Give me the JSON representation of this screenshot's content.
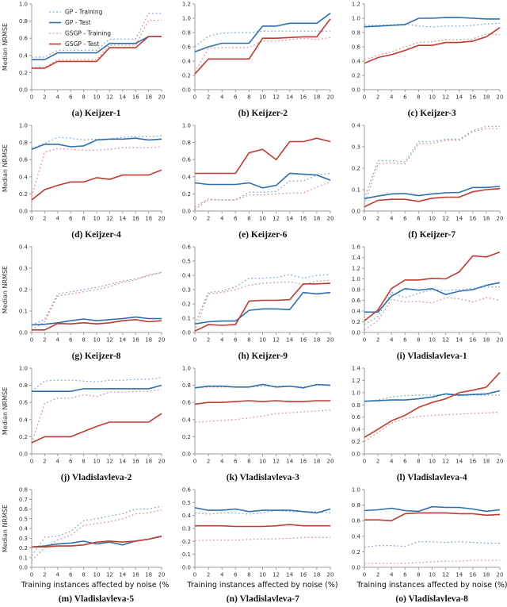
{
  "figure": {
    "ylabel": "Median NRMSE",
    "xlabel": "Training instances affected by noise (%)",
    "colors": {
      "gp_training": "#7aa3d6",
      "gp_test": "#2e6fae",
      "gsgp_training": "#e08c8c",
      "gsgp_test": "#c03a2e",
      "spine": "#9b9b9b",
      "tick_label": "#333333"
    },
    "legend": [
      {
        "key": "gp_training",
        "label": "GP - Training",
        "dash": true
      },
      {
        "key": "gp_test",
        "label": "GP - Test",
        "dash": false
      },
      {
        "key": "gsgp_training",
        "label": "GSGP - Training",
        "dash": true
      },
      {
        "key": "gsgp_test",
        "label": "GSGP - Test",
        "dash": false
      }
    ],
    "xticks": [
      0,
      2,
      4,
      6,
      8,
      10,
      12,
      14,
      16,
      18,
      20
    ]
  },
  "chart_data": [
    {
      "id": "keijzer-1",
      "caption": "(a) Keijzer-1",
      "type": "line",
      "x": [
        0,
        2,
        4,
        6,
        8,
        10,
        12,
        14,
        16,
        18,
        20
      ],
      "ylim": [
        0,
        1.0
      ],
      "yticks": [
        0.0,
        0.2,
        0.4,
        0.6,
        0.8,
        1.0
      ],
      "series": {
        "gp_training": [
          0.38,
          0.38,
          0.46,
          0.46,
          0.46,
          0.46,
          0.59,
          0.59,
          0.59,
          0.89,
          0.89
        ],
        "gp_test": [
          0.35,
          0.35,
          0.43,
          0.43,
          0.43,
          0.43,
          0.54,
          0.54,
          0.54,
          0.62,
          0.62
        ],
        "gsgp_training": [
          0.26,
          0.26,
          0.35,
          0.35,
          0.35,
          0.35,
          0.52,
          0.52,
          0.52,
          0.81,
          0.81
        ],
        "gsgp_test": [
          0.25,
          0.25,
          0.33,
          0.33,
          0.33,
          0.33,
          0.49,
          0.49,
          0.49,
          0.62,
          0.62
        ]
      }
    },
    {
      "id": "keijzer-2",
      "caption": "(b) Keijzer-2",
      "type": "line",
      "x": [
        0,
        2,
        4,
        6,
        8,
        10,
        12,
        14,
        16,
        18,
        20
      ],
      "ylim": [
        0,
        1.2
      ],
      "yticks": [
        0.0,
        0.2,
        0.4,
        0.6,
        0.8,
        1.0,
        1.2
      ],
      "series": {
        "gp_training": [
          0.6,
          0.75,
          0.79,
          0.8,
          0.8,
          0.82,
          0.82,
          0.82,
          0.82,
          0.82,
          0.82
        ],
        "gp_test": [
          0.53,
          0.6,
          0.65,
          0.65,
          0.65,
          0.89,
          0.89,
          0.93,
          0.93,
          0.93,
          1.07
        ],
        "gsgp_training": [
          0.25,
          0.58,
          0.59,
          0.59,
          0.59,
          0.68,
          0.68,
          0.7,
          0.72,
          0.7,
          0.73
        ],
        "gsgp_test": [
          0.22,
          0.43,
          0.43,
          0.43,
          0.43,
          0.72,
          0.72,
          0.73,
          0.74,
          0.74,
          0.99
        ]
      }
    },
    {
      "id": "keijzer-3",
      "caption": "(c) Keijzer-3",
      "type": "line",
      "x": [
        0,
        2,
        4,
        6,
        8,
        10,
        12,
        14,
        16,
        18,
        20
      ],
      "ylim": [
        0,
        1.2
      ],
      "yticks": [
        0.0,
        0.2,
        0.4,
        0.6,
        0.8,
        1.0,
        1.2
      ],
      "series": {
        "gp_training": [
          0.9,
          0.9,
          0.91,
          0.92,
          0.89,
          0.88,
          0.89,
          0.89,
          0.9,
          0.92,
          0.93
        ],
        "gp_test": [
          0.88,
          0.89,
          0.9,
          0.91,
          1.0,
          1.0,
          1.01,
          1.01,
          1.0,
          0.99,
          0.99
        ],
        "gsgp_training": [
          0.42,
          0.48,
          0.53,
          0.6,
          0.66,
          0.67,
          0.7,
          0.7,
          0.71,
          0.78,
          0.77
        ],
        "gsgp_test": [
          0.37,
          0.45,
          0.49,
          0.55,
          0.62,
          0.62,
          0.66,
          0.66,
          0.68,
          0.74,
          0.87
        ]
      }
    },
    {
      "id": "keijzer-4",
      "caption": "(d) Keijzer-4",
      "type": "line",
      "x": [
        0,
        2,
        4,
        6,
        8,
        10,
        12,
        14,
        16,
        18,
        20
      ],
      "ylim": [
        0,
        1.0
      ],
      "yticks": [
        0.0,
        0.2,
        0.4,
        0.6,
        0.8,
        1.0
      ],
      "series": {
        "gp_training": [
          0.73,
          0.79,
          0.86,
          0.85,
          0.83,
          0.84,
          0.84,
          0.86,
          0.87,
          0.87,
          0.88
        ],
        "gp_test": [
          0.72,
          0.78,
          0.78,
          0.75,
          0.76,
          0.83,
          0.84,
          0.84,
          0.85,
          0.83,
          0.84
        ],
        "gsgp_training": [
          0.17,
          0.69,
          0.73,
          0.72,
          0.71,
          0.71,
          0.72,
          0.74,
          0.74,
          0.74,
          0.75
        ],
        "gsgp_test": [
          0.13,
          0.25,
          0.3,
          0.34,
          0.34,
          0.39,
          0.37,
          0.42,
          0.42,
          0.42,
          0.48
        ]
      }
    },
    {
      "id": "keijzer-6",
      "caption": "(e) Keijzer-6",
      "type": "line",
      "x": [
        0,
        2,
        4,
        6,
        8,
        10,
        12,
        14,
        16,
        18,
        20
      ],
      "ylim": [
        0,
        1.0
      ],
      "yticks": [
        0.0,
        0.2,
        0.4,
        0.6,
        0.8,
        1.0
      ],
      "series": {
        "gp_training": [
          0.05,
          0.14,
          0.13,
          0.13,
          0.22,
          0.22,
          0.23,
          0.35,
          0.35,
          0.42,
          0.44
        ],
        "gp_test": [
          0.33,
          0.31,
          0.31,
          0.31,
          0.33,
          0.27,
          0.3,
          0.44,
          0.43,
          0.42,
          0.36
        ],
        "gsgp_training": [
          0.02,
          0.13,
          0.13,
          0.13,
          0.19,
          0.19,
          0.2,
          0.21,
          0.21,
          0.28,
          0.34
        ],
        "gsgp_test": [
          0.44,
          0.44,
          0.44,
          0.44,
          0.68,
          0.72,
          0.6,
          0.81,
          0.81,
          0.85,
          0.81
        ]
      }
    },
    {
      "id": "keijzer-7",
      "caption": "(f) Keijzer-7",
      "type": "line",
      "x": [
        0,
        2,
        4,
        6,
        8,
        10,
        12,
        14,
        16,
        18,
        20
      ],
      "ylim": [
        0,
        0.4
      ],
      "yticks": [
        0.0,
        0.1,
        0.2,
        0.3,
        0.4
      ],
      "series": {
        "gp_training": [
          0.06,
          0.235,
          0.235,
          0.23,
          0.325,
          0.325,
          0.335,
          0.335,
          0.375,
          0.395,
          0.395
        ],
        "gp_test": [
          0.058,
          0.07,
          0.08,
          0.082,
          0.072,
          0.08,
          0.085,
          0.087,
          0.11,
          0.11,
          0.115
        ],
        "gsgp_training": [
          0.03,
          0.22,
          0.225,
          0.22,
          0.315,
          0.315,
          0.33,
          0.33,
          0.37,
          0.385,
          0.385
        ],
        "gsgp_test": [
          0.02,
          0.05,
          0.055,
          0.055,
          0.045,
          0.06,
          0.065,
          0.065,
          0.09,
          0.1,
          0.105
        ]
      }
    },
    {
      "id": "keijzer-8",
      "caption": "(g) Keijzer-8",
      "type": "line",
      "x": [
        0,
        2,
        4,
        6,
        8,
        10,
        12,
        14,
        16,
        18,
        20
      ],
      "ylim": [
        0,
        0.4
      ],
      "yticks": [
        0.0,
        0.1,
        0.2,
        0.3,
        0.4
      ],
      "series": {
        "gp_training": [
          0.035,
          0.06,
          0.18,
          0.19,
          0.2,
          0.21,
          0.225,
          0.24,
          0.25,
          0.265,
          0.28
        ],
        "gp_test": [
          0.035,
          0.038,
          0.045,
          0.055,
          0.063,
          0.055,
          0.06,
          0.065,
          0.072,
          0.065,
          0.065
        ],
        "gsgp_training": [
          0.012,
          0.05,
          0.17,
          0.18,
          0.19,
          0.2,
          0.215,
          0.235,
          0.245,
          0.27,
          0.28
        ],
        "gsgp_test": [
          0.012,
          0.012,
          0.042,
          0.04,
          0.045,
          0.04,
          0.045,
          0.055,
          0.06,
          0.05,
          0.055
        ]
      }
    },
    {
      "id": "keijzer-9",
      "caption": "(h) Keijzer-9",
      "type": "line",
      "x": [
        0,
        2,
        4,
        6,
        8,
        10,
        12,
        14,
        16,
        18,
        20
      ],
      "ylim": [
        0,
        0.6
      ],
      "yticks": [
        0.0,
        0.1,
        0.2,
        0.3,
        0.4,
        0.5,
        0.6
      ],
      "series": {
        "gp_training": [
          0.06,
          0.28,
          0.29,
          0.32,
          0.38,
          0.38,
          0.385,
          0.405,
          0.38,
          0.4,
          0.405
        ],
        "gp_test": [
          0.06,
          0.075,
          0.08,
          0.08,
          0.155,
          0.165,
          0.165,
          0.16,
          0.28,
          0.27,
          0.28
        ],
        "gsgp_training": [
          0.01,
          0.27,
          0.28,
          0.3,
          0.33,
          0.345,
          0.35,
          0.355,
          0.335,
          0.36,
          0.365
        ],
        "gsgp_test": [
          0.01,
          0.055,
          0.05,
          0.055,
          0.22,
          0.225,
          0.225,
          0.23,
          0.34,
          0.34,
          0.345
        ]
      }
    },
    {
      "id": "vladislavleva-1",
      "caption": "(i) Vladislavleva-1",
      "type": "line",
      "x": [
        0,
        2,
        4,
        6,
        8,
        10,
        12,
        14,
        16,
        18,
        20
      ],
      "ylim": [
        0,
        1.6
      ],
      "yticks": [
        0.0,
        0.2,
        0.4,
        0.6,
        0.8,
        1.0,
        1.2,
        1.4,
        1.6
      ],
      "series": {
        "gp_training": [
          0.15,
          0.3,
          0.75,
          0.65,
          0.73,
          0.8,
          0.78,
          0.8,
          0.82,
          0.85,
          0.85
        ],
        "gp_test": [
          0.38,
          0.38,
          0.68,
          0.82,
          0.79,
          0.82,
          0.71,
          0.77,
          0.8,
          0.88,
          0.93
        ],
        "gsgp_training": [
          0.05,
          0.22,
          0.62,
          0.57,
          0.58,
          0.55,
          0.65,
          0.63,
          0.57,
          0.65,
          0.6
        ],
        "gsgp_test": [
          0.22,
          0.42,
          0.82,
          0.98,
          0.98,
          1.01,
          1.0,
          1.13,
          1.43,
          1.41,
          1.5
        ]
      }
    },
    {
      "id": "vladislavleva-2",
      "caption": "(j) Vladislavleva-2",
      "type": "line",
      "x": [
        0,
        2,
        4,
        6,
        8,
        10,
        12,
        14,
        16,
        18,
        20
      ],
      "ylim": [
        0,
        1.0
      ],
      "yticks": [
        0.0,
        0.2,
        0.4,
        0.6,
        0.8,
        1.0
      ],
      "series": {
        "gp_training": [
          0.73,
          0.85,
          0.86,
          0.86,
          0.85,
          0.84,
          0.86,
          0.86,
          0.87,
          0.87,
          0.89
        ],
        "gp_test": [
          0.73,
          0.73,
          0.73,
          0.73,
          0.76,
          0.76,
          0.76,
          0.76,
          0.76,
          0.76,
          0.8
        ],
        "gsgp_training": [
          0.13,
          0.59,
          0.65,
          0.65,
          0.69,
          0.67,
          0.72,
          0.72,
          0.73,
          0.73,
          0.75
        ],
        "gsgp_test": [
          0.13,
          0.2,
          0.2,
          0.2,
          0.26,
          0.32,
          0.37,
          0.37,
          0.37,
          0.37,
          0.47
        ]
      }
    },
    {
      "id": "vladislavleva-3",
      "caption": "(k) Vladislavleva-3",
      "type": "line",
      "x": [
        0,
        2,
        4,
        6,
        8,
        10,
        12,
        14,
        16,
        18,
        20
      ],
      "ylim": [
        0,
        1.0
      ],
      "yticks": [
        0.0,
        0.2,
        0.4,
        0.6,
        0.8,
        1.0
      ],
      "series": {
        "gp_training": [
          0.77,
          0.78,
          0.78,
          0.78,
          0.78,
          0.79,
          0.79,
          0.79,
          0.78,
          0.8,
          0.8
        ],
        "gp_test": [
          0.77,
          0.79,
          0.79,
          0.78,
          0.78,
          0.81,
          0.78,
          0.79,
          0.77,
          0.81,
          0.8
        ],
        "gsgp_training": [
          0.37,
          0.38,
          0.39,
          0.4,
          0.42,
          0.44,
          0.47,
          0.48,
          0.49,
          0.5,
          0.51
        ],
        "gsgp_test": [
          0.58,
          0.6,
          0.6,
          0.61,
          0.62,
          0.61,
          0.62,
          0.61,
          0.61,
          0.62,
          0.62
        ]
      }
    },
    {
      "id": "vladislavleva-4",
      "caption": "(l) Vladislavleva-4",
      "type": "line",
      "x": [
        0,
        2,
        4,
        6,
        8,
        10,
        12,
        14,
        16,
        18,
        20
      ],
      "ylim": [
        0,
        1.4
      ],
      "yticks": [
        0.0,
        0.2,
        0.4,
        0.6,
        0.8,
        1.0,
        1.2,
        1.4
      ],
      "series": {
        "gp_training": [
          0.86,
          0.88,
          0.93,
          0.95,
          0.96,
          0.96,
          0.97,
          0.95,
          0.96,
          0.96,
          0.96
        ],
        "gp_test": [
          0.86,
          0.87,
          0.88,
          0.88,
          0.9,
          0.93,
          0.98,
          0.96,
          0.97,
          0.98,
          1.03
        ],
        "gsgp_training": [
          0.2,
          0.35,
          0.5,
          0.58,
          0.61,
          0.63,
          0.64,
          0.65,
          0.66,
          0.67,
          0.68
        ],
        "gsgp_test": [
          0.27,
          0.4,
          0.54,
          0.63,
          0.76,
          0.84,
          0.9,
          1.0,
          1.04,
          1.09,
          1.33
        ]
      }
    },
    {
      "id": "vladislavleva-5",
      "caption": "(m) Vladislavleva-5",
      "type": "line",
      "x": [
        0,
        2,
        4,
        6,
        8,
        10,
        12,
        14,
        16,
        18,
        20
      ],
      "ylim": [
        0,
        0.8
      ],
      "yticks": [
        0.0,
        0.1,
        0.2,
        0.3,
        0.4,
        0.5,
        0.6,
        0.7,
        0.8
      ],
      "series": {
        "gp_training": [
          0.12,
          0.31,
          0.32,
          0.37,
          0.48,
          0.5,
          0.53,
          0.55,
          0.6,
          0.6,
          0.63
        ],
        "gp_test": [
          0.21,
          0.22,
          0.24,
          0.25,
          0.27,
          0.24,
          0.26,
          0.23,
          0.27,
          0.29,
          0.32
        ],
        "gsgp_training": [
          0.07,
          0.2,
          0.28,
          0.33,
          0.43,
          0.45,
          0.47,
          0.5,
          0.55,
          0.56,
          0.59
        ],
        "gsgp_test": [
          0.21,
          0.21,
          0.22,
          0.22,
          0.23,
          0.26,
          0.27,
          0.26,
          0.27,
          0.29,
          0.32
        ]
      }
    },
    {
      "id": "vladislavleva-7",
      "caption": "(n) Vladislavleva-7",
      "type": "line",
      "x": [
        0,
        2,
        4,
        6,
        8,
        10,
        12,
        14,
        16,
        18,
        20
      ],
      "ylim": [
        0,
        0.6
      ],
      "yticks": [
        0.0,
        0.1,
        0.2,
        0.3,
        0.4,
        0.5,
        0.6
      ],
      "series": {
        "gp_training": [
          0.42,
          0.41,
          0.42,
          0.42,
          0.41,
          0.42,
          0.44,
          0.43,
          0.43,
          0.43,
          0.42
        ],
        "gp_test": [
          0.46,
          0.44,
          0.44,
          0.45,
          0.43,
          0.44,
          0.44,
          0.44,
          0.43,
          0.42,
          0.45
        ],
        "gsgp_training": [
          0.205,
          0.21,
          0.21,
          0.21,
          0.215,
          0.22,
          0.22,
          0.225,
          0.23,
          0.23,
          0.23
        ],
        "gsgp_test": [
          0.32,
          0.32,
          0.32,
          0.315,
          0.315,
          0.315,
          0.32,
          0.33,
          0.32,
          0.32,
          0.32
        ]
      }
    },
    {
      "id": "vladislavleva-8",
      "caption": "(o) Vladislavleva-8",
      "type": "line",
      "x": [
        0,
        2,
        4,
        6,
        8,
        10,
        12,
        14,
        16,
        18,
        20
      ],
      "ylim": [
        0,
        1.0
      ],
      "yticks": [
        0.0,
        0.2,
        0.4,
        0.6,
        0.8,
        1.0
      ],
      "series": {
        "gp_training": [
          0.26,
          0.28,
          0.28,
          0.27,
          0.33,
          0.33,
          0.32,
          0.33,
          0.32,
          0.31,
          0.31
        ],
        "gp_test": [
          0.73,
          0.74,
          0.76,
          0.73,
          0.72,
          0.78,
          0.77,
          0.77,
          0.75,
          0.72,
          0.74
        ],
        "gsgp_training": [
          0.05,
          0.05,
          0.05,
          0.05,
          0.06,
          0.07,
          0.08,
          0.08,
          0.09,
          0.09,
          0.09
        ],
        "gsgp_test": [
          0.61,
          0.61,
          0.6,
          0.69,
          0.7,
          0.7,
          0.7,
          0.69,
          0.69,
          0.67,
          0.68
        ]
      }
    }
  ]
}
